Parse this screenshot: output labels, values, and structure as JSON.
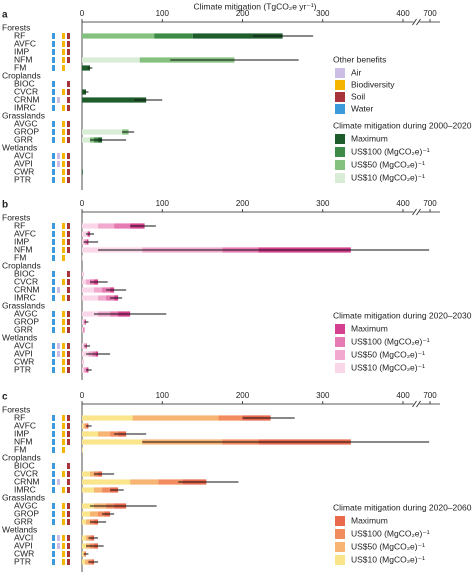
{
  "chart_data": [
    {
      "type": "bar",
      "panel_label": "a",
      "x_label": "Climate mitigation (TgCO₂e yr⁻¹)",
      "xlim": [
        0,
        700
      ],
      "xticks": [
        0,
        100,
        200,
        300,
        400,
        700
      ],
      "broken_axis": true,
      "groups": [
        {
          "name": "Forests",
          "categories": [
            "RF",
            "AVFC",
            "IMP",
            "NFM",
            "FM"
          ]
        },
        {
          "name": "Croplands",
          "categories": [
            "BIOC",
            "CVCR",
            "CRNM",
            "IMRC"
          ]
        },
        {
          "name": "Grasslands",
          "categories": [
            "AVGC",
            "GROP",
            "GRR"
          ]
        },
        {
          "name": "Wetlands",
          "categories": [
            "AVCI",
            "AVPI",
            "CWR",
            "PTR"
          ]
        }
      ],
      "muted_categories": [
        false,
        true,
        true,
        false,
        false,
        false,
        false,
        false,
        true,
        true,
        false,
        false,
        true,
        true,
        false,
        true
      ],
      "legend_title": "Climate mitigation during 2000–2020",
      "series": [
        {
          "name": "Maximum",
          "color": "#1f5c2c",
          "values": [
            112,
            0,
            0,
            0,
            10,
            0,
            5,
            80,
            0,
            0,
            0,
            5,
            0,
            0,
            1,
            0
          ]
        },
        {
          "name": "US$100 (MgCO₂e)⁻¹",
          "color": "#3d8b46",
          "values": [
            48,
            0,
            0,
            0,
            0,
            0,
            0,
            0,
            0,
            0,
            0,
            5,
            0,
            0,
            0,
            0
          ]
        },
        {
          "name": "US$50 (MgCO₂e)⁻¹",
          "color": "#84c17f",
          "values": [
            90,
            0,
            0,
            118,
            0,
            0,
            0,
            0,
            0,
            0,
            8,
            5,
            0,
            0,
            0,
            0
          ]
        },
        {
          "name": "US$10 (MgCO₂e)⁻¹",
          "color": "#d9ecd5",
          "values": [
            0,
            0,
            0,
            72,
            0,
            0,
            0,
            0,
            0,
            0,
            50,
            10,
            0,
            0,
            0,
            0
          ]
        }
      ],
      "ci": [
        [
          213,
          288
        ],
        null,
        null,
        [
          110,
          270
        ],
        [
          7,
          13
        ],
        null,
        [
          3,
          8
        ],
        [
          65,
          100
        ],
        null,
        null,
        [
          50,
          65
        ],
        [
          10,
          55
        ],
        null,
        null,
        null,
        null
      ]
    },
    {
      "type": "bar",
      "panel_label": "b",
      "xlim": [
        0,
        700
      ],
      "xticks": [
        0,
        100,
        200,
        300,
        400,
        700
      ],
      "broken_axis": true,
      "groups": [
        {
          "name": "Forests",
          "categories": [
            "RF",
            "AVFC",
            "IMP",
            "NFM",
            "FM"
          ]
        },
        {
          "name": "Croplands",
          "categories": [
            "BIOC",
            "CVCR",
            "CRNM",
            "IMRC"
          ]
        },
        {
          "name": "Grasslands",
          "categories": [
            "AVGC",
            "GROP",
            "GRR"
          ]
        },
        {
          "name": "Wetlands",
          "categories": [
            "AVCI",
            "AVPI",
            "CWR",
            "PTR"
          ]
        }
      ],
      "legend_title": "Climate mitigation during 2020–2030",
      "series": [
        {
          "name": "Maximum",
          "color": "#d43f8f",
          "values": [
            18,
            3,
            2,
            115,
            0,
            0,
            5,
            5,
            5,
            15,
            1,
            1,
            1,
            3,
            0,
            2
          ]
        },
        {
          "name": "US$100 (MgCO₂e)⁻¹",
          "color": "#e67ab3",
          "values": [
            20,
            0,
            2,
            45,
            0,
            0,
            5,
            10,
            10,
            10,
            1,
            0,
            1,
            4,
            0,
            2
          ]
        },
        {
          "name": "US$50 (MgCO₂e)⁻¹",
          "color": "#f1a9cf",
          "values": [
            20,
            0,
            2,
            100,
            0,
            1,
            5,
            10,
            10,
            15,
            1,
            1,
            2,
            5,
            1,
            2
          ]
        },
        {
          "name": "US$10 (MgCO₂e)⁻¹",
          "color": "#f9d7e8",
          "values": [
            20,
            7,
            2,
            75,
            1,
            1,
            5,
            15,
            20,
            20,
            2,
            1,
            2,
            8,
            1,
            2
          ]
        }
      ],
      "ci": [
        [
          60,
          92
        ],
        [
          5,
          15
        ],
        [
          2,
          20
        ],
        [
          20,
          690
        ],
        null,
        null,
        [
          10,
          32
        ],
        [
          30,
          55
        ],
        [
          35,
          50
        ],
        [
          15,
          105
        ],
        [
          3,
          8
        ],
        null,
        [
          3,
          10
        ],
        [
          5,
          35
        ],
        null,
        [
          5,
          12
        ]
      ]
    },
    {
      "type": "bar",
      "panel_label": "c",
      "xlim": [
        0,
        700
      ],
      "xticks": [
        0,
        100,
        200,
        300,
        400,
        700
      ],
      "broken_axis": true,
      "groups": [
        {
          "name": "Forests",
          "categories": [
            "RF",
            "AVFC",
            "IMP",
            "NFM",
            "FM"
          ]
        },
        {
          "name": "Croplands",
          "categories": [
            "BIOC",
            "CVCR",
            "CRNM",
            "IMRC"
          ]
        },
        {
          "name": "Grasslands",
          "categories": [
            "AVGC",
            "GROP",
            "GRR"
          ]
        },
        {
          "name": "Wetlands",
          "categories": [
            "AVCI",
            "AVPI",
            "CWR",
            "PTR"
          ]
        }
      ],
      "legend_title": "Climate mitigation during 2020–2060",
      "series": [
        {
          "name": "Maximum",
          "color": "#e9694c",
          "values": [
            35,
            2,
            10,
            115,
            0,
            0,
            5,
            30,
            10,
            15,
            7,
            5,
            3,
            5,
            1,
            3
          ]
        },
        {
          "name": "US$100 (MgCO₂e)⁻¹",
          "color": "#f28b5d",
          "values": [
            30,
            2,
            10,
            45,
            0,
            0,
            5,
            30,
            10,
            10,
            8,
            5,
            3,
            5,
            1,
            4
          ]
        },
        {
          "name": "US$50 (MgCO₂e)⁻¹",
          "color": "#f7b472",
          "values": [
            107,
            2,
            15,
            100,
            0,
            0,
            5,
            35,
            10,
            15,
            10,
            5,
            4,
            5,
            1,
            4
          ]
        },
        {
          "name": "US$10 (MgCO₂e)⁻¹",
          "color": "#fbe58b",
          "values": [
            63,
            2,
            20,
            75,
            1,
            0,
            10,
            60,
            15,
            15,
            10,
            5,
            5,
            5,
            2,
            4
          ]
        }
      ],
      "ci": [
        [
          200,
          265
        ],
        [
          5,
          12
        ],
        [
          40,
          80
        ],
        [
          75,
          690
        ],
        null,
        null,
        [
          15,
          40
        ],
        [
          120,
          195
        ],
        [
          35,
          52
        ],
        [
          10,
          93
        ],
        [
          25,
          40
        ],
        [
          10,
          30
        ],
        [
          8,
          20
        ],
        [
          5,
          27
        ],
        [
          2,
          8
        ],
        [
          8,
          20
        ]
      ]
    }
  ],
  "benefits": {
    "title": "Other benefits",
    "items": [
      {
        "name": "Air",
        "color": "#cbbde3"
      },
      {
        "name": "Biodiversity",
        "color": "#f4b400"
      },
      {
        "name": "Soil",
        "color": "#a7333b"
      },
      {
        "name": "Water",
        "color": "#3b9ad9"
      }
    ],
    "rows": [
      [
        0,
        1,
        1,
        1
      ],
      [
        0,
        1,
        1,
        1
      ],
      [
        0,
        1,
        1,
        1
      ],
      [
        0,
        1,
        1,
        1
      ],
      [
        0,
        1,
        0,
        1
      ],
      [
        0,
        0,
        1,
        1
      ],
      [
        0,
        1,
        1,
        1
      ],
      [
        1,
        0,
        1,
        1
      ],
      [
        0,
        1,
        1,
        1
      ],
      [
        0,
        1,
        1,
        1
      ],
      [
        0,
        1,
        1,
        1
      ],
      [
        0,
        1,
        1,
        1
      ],
      [
        1,
        1,
        1,
        1
      ],
      [
        1,
        1,
        1,
        1
      ],
      [
        0,
        1,
        1,
        1
      ],
      [
        0,
        1,
        1,
        1
      ]
    ]
  }
}
